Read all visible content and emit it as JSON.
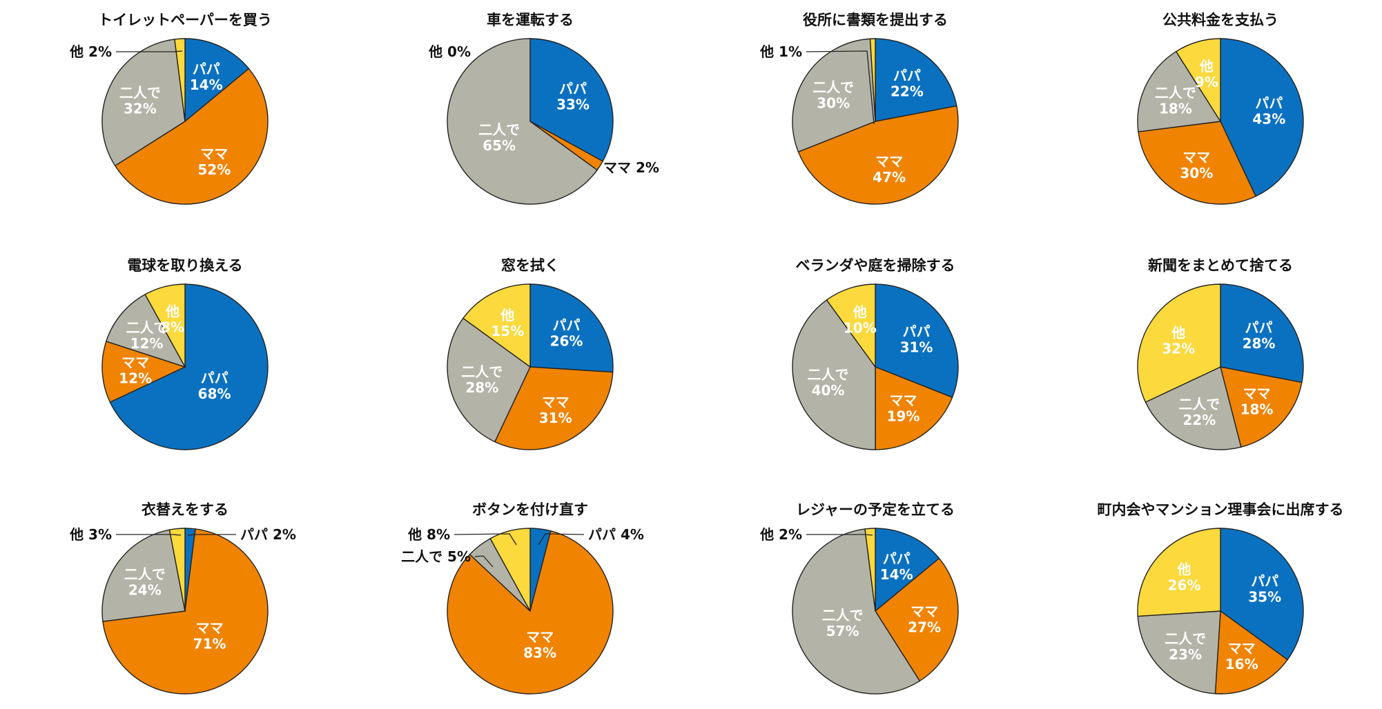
{
  "colors": {
    "papa": "#0A71C1",
    "mama": "#F08300",
    "futari": "#B3B3A7",
    "other": "#FCD93C"
  },
  "chart_data": [
    {
      "type": "pie",
      "title": "トイレットペーパーを買う",
      "slices": [
        {
          "key": "papa",
          "name": "パパ",
          "value": 14,
          "label": "14%"
        },
        {
          "key": "mama",
          "name": "ママ",
          "value": 52,
          "label": "52%"
        },
        {
          "key": "futari",
          "name": "二人で",
          "value": 32,
          "label": "32%"
        },
        {
          "key": "other",
          "name": "他",
          "value": 2,
          "label": "2%"
        }
      ]
    },
    {
      "type": "pie",
      "title": "車を運転する",
      "slices": [
        {
          "key": "papa",
          "name": "パパ",
          "value": 33,
          "label": "33%"
        },
        {
          "key": "mama",
          "name": "ママ",
          "value": 2,
          "label": "2%"
        },
        {
          "key": "futari",
          "name": "二人で",
          "value": 65,
          "label": "65%"
        },
        {
          "key": "other",
          "name": "他",
          "value": 0,
          "label": "0%"
        }
      ]
    },
    {
      "type": "pie",
      "title": "役所に書類を提出する",
      "slices": [
        {
          "key": "papa",
          "name": "パパ",
          "value": 22,
          "label": "22%"
        },
        {
          "key": "mama",
          "name": "ママ",
          "value": 47,
          "label": "47%"
        },
        {
          "key": "futari",
          "name": "二人で",
          "value": 30,
          "label": "30%"
        },
        {
          "key": "other",
          "name": "他",
          "value": 1,
          "label": "1%"
        }
      ]
    },
    {
      "type": "pie",
      "title": "公共料金を支払う",
      "slices": [
        {
          "key": "papa",
          "name": "パパ",
          "value": 43,
          "label": "43%"
        },
        {
          "key": "mama",
          "name": "ママ",
          "value": 30,
          "label": "30%"
        },
        {
          "key": "futari",
          "name": "二人で",
          "value": 18,
          "label": "18%"
        },
        {
          "key": "other",
          "name": "他",
          "value": 9,
          "label": "9%"
        }
      ]
    },
    {
      "type": "pie",
      "title": "電球を取り換える",
      "slices": [
        {
          "key": "papa",
          "name": "パパ",
          "value": 68,
          "label": "68%"
        },
        {
          "key": "mama",
          "name": "ママ",
          "value": 12,
          "label": "12%"
        },
        {
          "key": "futari",
          "name": "二人で",
          "value": 12,
          "label": "12%"
        },
        {
          "key": "other",
          "name": "他",
          "value": 8,
          "label": "8%"
        }
      ]
    },
    {
      "type": "pie",
      "title": "窓を拭く",
      "slices": [
        {
          "key": "papa",
          "name": "パパ",
          "value": 26,
          "label": "26%"
        },
        {
          "key": "mama",
          "name": "ママ",
          "value": 31,
          "label": "31%"
        },
        {
          "key": "futari",
          "name": "二人で",
          "value": 28,
          "label": "28%"
        },
        {
          "key": "other",
          "name": "他",
          "value": 15,
          "label": "15%"
        }
      ]
    },
    {
      "type": "pie",
      "title": "ベランダや庭を掃除する",
      "slices": [
        {
          "key": "papa",
          "name": "パパ",
          "value": 31,
          "label": "31%"
        },
        {
          "key": "mama",
          "name": "ママ",
          "value": 19,
          "label": "19%"
        },
        {
          "key": "futari",
          "name": "二人で",
          "value": 40,
          "label": "40%"
        },
        {
          "key": "other",
          "name": "他",
          "value": 10,
          "label": "10%"
        }
      ]
    },
    {
      "type": "pie",
      "title": "新聞をまとめて捨てる",
      "slices": [
        {
          "key": "papa",
          "name": "パパ",
          "value": 28,
          "label": "28%"
        },
        {
          "key": "mama",
          "name": "ママ",
          "value": 18,
          "label": "18%"
        },
        {
          "key": "futari",
          "name": "二人で",
          "value": 22,
          "label": "22%"
        },
        {
          "key": "other",
          "name": "他",
          "value": 32,
          "label": "32%"
        }
      ]
    },
    {
      "type": "pie",
      "title": "衣替えをする",
      "slices": [
        {
          "key": "papa",
          "name": "パパ",
          "value": 2,
          "label": "2%"
        },
        {
          "key": "mama",
          "name": "ママ",
          "value": 71,
          "label": "71%"
        },
        {
          "key": "futari",
          "name": "二人で",
          "value": 24,
          "label": "24%"
        },
        {
          "key": "other",
          "name": "他",
          "value": 3,
          "label": "3%"
        }
      ]
    },
    {
      "type": "pie",
      "title": "ボタンを付け直す",
      "slices": [
        {
          "key": "papa",
          "name": "パパ",
          "value": 4,
          "label": "4%"
        },
        {
          "key": "mama",
          "name": "ママ",
          "value": 83,
          "label": "83%"
        },
        {
          "key": "futari",
          "name": "二人で",
          "value": 5,
          "label": "5%"
        },
        {
          "key": "other",
          "name": "他",
          "value": 8,
          "label": "8%"
        }
      ]
    },
    {
      "type": "pie",
      "title": "レジャーの予定を立てる",
      "slices": [
        {
          "key": "papa",
          "name": "パパ",
          "value": 14,
          "label": "14%"
        },
        {
          "key": "mama",
          "name": "ママ",
          "value": 27,
          "label": "27%"
        },
        {
          "key": "futari",
          "name": "二人で",
          "value": 57,
          "label": "57%"
        },
        {
          "key": "other",
          "name": "他",
          "value": 2,
          "label": "2%"
        }
      ]
    },
    {
      "type": "pie",
      "title": "町内会やマンション理事会に出席する",
      "slices": [
        {
          "key": "papa",
          "name": "パパ",
          "value": 35,
          "label": "35%"
        },
        {
          "key": "mama",
          "name": "ママ",
          "value": 16,
          "label": "16%"
        },
        {
          "key": "futari",
          "name": "二人で",
          "value": 23,
          "label": "23%"
        },
        {
          "key": "other",
          "name": "他",
          "value": 26,
          "label": "26%"
        }
      ]
    }
  ]
}
